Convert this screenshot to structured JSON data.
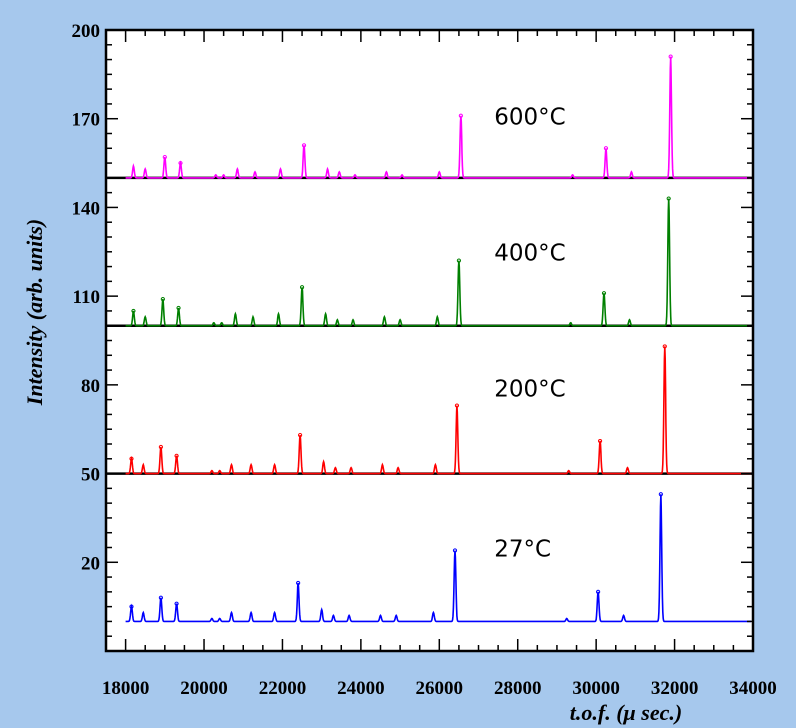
{
  "chart_data": {
    "type": "line",
    "title": "",
    "xlabel": "t.o.f. (μ sec.)",
    "ylabel": "Intensity (arb. units)",
    "xlim": [
      17500,
      34000
    ],
    "ylim": [
      -10,
      200
    ],
    "x_ticks": [
      "18000",
      "20000",
      "22000",
      "24000",
      "26000",
      "28000",
      "30000",
      "32000",
      "34000"
    ],
    "x_tick_values": [
      18000,
      20000,
      22000,
      24000,
      26000,
      28000,
      30000,
      32000,
      34000
    ],
    "y_ticks": [
      "20",
      "50",
      "80",
      "110",
      "140",
      "170",
      "200"
    ],
    "y_tick_values": [
      20,
      50,
      80,
      110,
      140,
      170,
      200
    ],
    "separators_y": [
      50,
      100,
      150
    ],
    "series": [
      {
        "name": "27°C",
        "color": "#0000ff",
        "baseline": 0,
        "label_pos": [
          27400,
          22
        ],
        "peaks": [
          [
            18150,
            5
          ],
          [
            18450,
            3
          ],
          [
            18900,
            8
          ],
          [
            19300,
            6
          ],
          [
            20200,
            1
          ],
          [
            20400,
            1
          ],
          [
            20700,
            3
          ],
          [
            21200,
            3
          ],
          [
            21800,
            3
          ],
          [
            22400,
            13
          ],
          [
            23000,
            4
          ],
          [
            23300,
            2
          ],
          [
            23700,
            2
          ],
          [
            24500,
            2
          ],
          [
            24900,
            2
          ],
          [
            25850,
            3
          ],
          [
            26400,
            24
          ],
          [
            29250,
            1
          ],
          [
            30050,
            10
          ],
          [
            30700,
            2
          ],
          [
            31650,
            43
          ]
        ]
      },
      {
        "name": "200°C",
        "color": "#ff0000",
        "baseline": 50,
        "label_pos": [
          27400,
          76
        ],
        "peaks": [
          [
            18150,
            5
          ],
          [
            18450,
            3
          ],
          [
            18900,
            9
          ],
          [
            19300,
            6
          ],
          [
            20200,
            1
          ],
          [
            20400,
            1
          ],
          [
            20700,
            3
          ],
          [
            21200,
            3
          ],
          [
            21800,
            3
          ],
          [
            22450,
            13
          ],
          [
            23050,
            4
          ],
          [
            23350,
            2
          ],
          [
            23750,
            2
          ],
          [
            24550,
            3
          ],
          [
            24950,
            2
          ],
          [
            25900,
            3
          ],
          [
            26450,
            23
          ],
          [
            29300,
            1
          ],
          [
            30100,
            11
          ],
          [
            30800,
            2
          ],
          [
            31750,
            43
          ]
        ]
      },
      {
        "name": "400°C",
        "color": "#008000",
        "baseline": 100,
        "label_pos": [
          27400,
          122
        ],
        "peaks": [
          [
            18200,
            5
          ],
          [
            18500,
            3
          ],
          [
            18950,
            9
          ],
          [
            19350,
            6
          ],
          [
            20250,
            1
          ],
          [
            20450,
            1
          ],
          [
            20800,
            4
          ],
          [
            21250,
            3
          ],
          [
            21900,
            4
          ],
          [
            22500,
            13
          ],
          [
            23100,
            4
          ],
          [
            23400,
            2
          ],
          [
            23800,
            2
          ],
          [
            24600,
            3
          ],
          [
            25000,
            2
          ],
          [
            25950,
            3
          ],
          [
            26500,
            22
          ],
          [
            29350,
            1
          ],
          [
            30200,
            11
          ],
          [
            30850,
            2
          ],
          [
            31850,
            43
          ]
        ]
      },
      {
        "name": "600°C",
        "color": "#ff00ff",
        "baseline": 150,
        "label_pos": [
          27400,
          168
        ],
        "peaks": [
          [
            18200,
            4
          ],
          [
            18500,
            3
          ],
          [
            19000,
            7
          ],
          [
            19400,
            5
          ],
          [
            20300,
            1
          ],
          [
            20500,
            1
          ],
          [
            20850,
            3
          ],
          [
            21300,
            2
          ],
          [
            21950,
            3
          ],
          [
            22550,
            11
          ],
          [
            23150,
            3
          ],
          [
            23450,
            2
          ],
          [
            23850,
            1
          ],
          [
            24650,
            2
          ],
          [
            25050,
            1
          ],
          [
            26000,
            2
          ],
          [
            26550,
            21
          ],
          [
            29400,
            1
          ],
          [
            30250,
            10
          ],
          [
            30900,
            2
          ],
          [
            31900,
            41
          ]
        ]
      }
    ]
  }
}
